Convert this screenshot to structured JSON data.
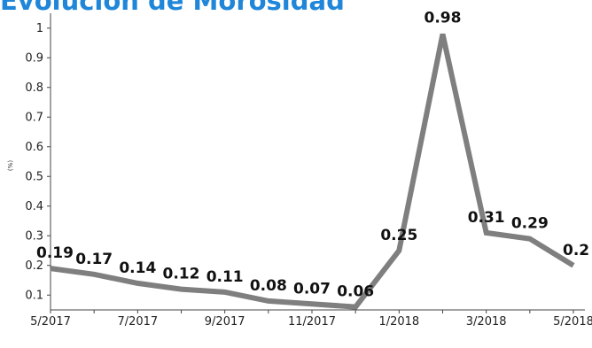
{
  "chart_data": {
    "type": "line",
    "title": "Evolución de Morosidad",
    "ylabel": "(%)",
    "xlabel": "",
    "x": [
      "5/2017",
      "6/2017",
      "7/2017",
      "8/2017",
      "9/2017",
      "10/2017",
      "11/2017",
      "12/2017",
      "1/2018",
      "2/2018",
      "3/2018",
      "4/2018",
      "5/2018"
    ],
    "xtick_labels": [
      "5/2017",
      "7/2017",
      "9/2017",
      "11/2017",
      "1/2018",
      "3/2018",
      "5/2018"
    ],
    "series": [
      {
        "values": [
          0.19,
          0.17,
          0.14,
          0.12,
          0.11,
          0.08,
          0.07,
          0.06,
          0.25,
          0.98,
          0.31,
          0.29,
          0.2
        ],
        "labels": [
          "0.19",
          "0.17",
          "0.14",
          "0.12",
          "0.11",
          "0.08",
          "0.07",
          "0.06",
          "0.25",
          "0.98",
          "0.31",
          "0.29",
          "0.2"
        ]
      }
    ],
    "ylim": [
      0.05,
      1.05
    ],
    "yticks": [
      0.1,
      0.2,
      0.3,
      0.4,
      0.5,
      0.6,
      0.7,
      0.8,
      0.9,
      1
    ],
    "ytick_labels": [
      "0.1",
      "0.2",
      "0.3",
      "0.4",
      "0.5",
      "0.6",
      "0.7",
      "0.8",
      "0.9",
      "1"
    ],
    "grid": false,
    "line_color": "#7f7f7f",
    "title_color": "#1f86d9"
  }
}
